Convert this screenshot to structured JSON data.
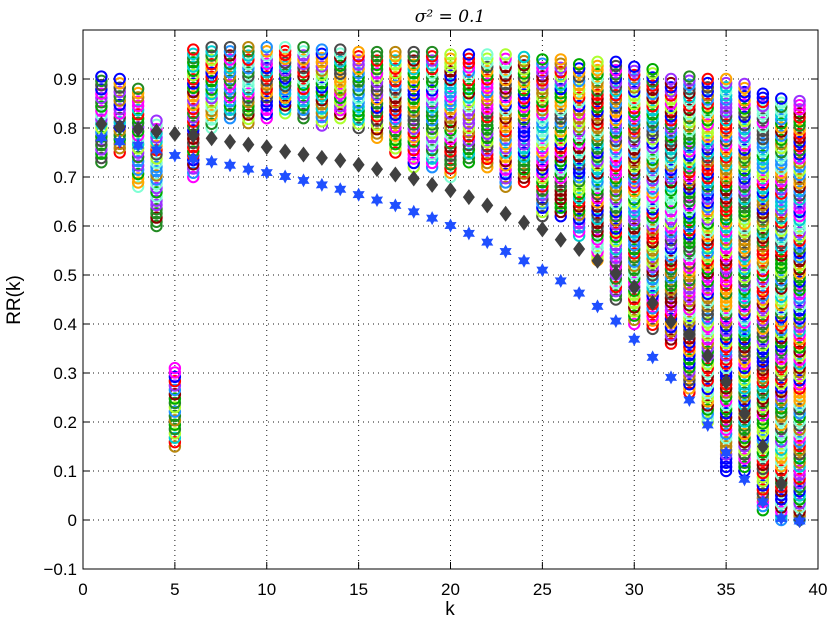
{
  "chart_data": {
    "type": "scatter",
    "title": "σ² = 0.1",
    "xlabel": "k",
    "ylabel": "RR(k)",
    "xlim": [
      0,
      40
    ],
    "ylim": [
      -0.1,
      1.0
    ],
    "xticks": [
      0,
      5,
      10,
      15,
      20,
      25,
      30,
      35,
      40
    ],
    "xtick_labels": [
      "0",
      "5",
      "10",
      "15",
      "20",
      "25",
      "30",
      "35",
      "40"
    ],
    "yticks": [
      -0.1,
      0,
      0.1,
      0.2,
      0.3,
      0.4,
      0.5,
      0.6,
      0.7,
      0.8,
      0.9
    ],
    "ytick_labels": [
      "−0.1",
      "0",
      "0.1",
      "0.2",
      "0.3",
      "0.4",
      "0.5",
      "0.6",
      "0.7",
      "0.8",
      "0.9"
    ],
    "grid": true,
    "marker_palette": [
      "#ff0000",
      "#00aa00",
      "#0000ff",
      "#9b30ff",
      "#ffa500",
      "#00ced1",
      "#228b22",
      "#4b4b4b",
      "#adff2f",
      "#ff00ff",
      "#7fffd4",
      "#8b0000",
      "#1e90ff",
      "#b8860b"
    ],
    "series": [
      {
        "name": "diamond",
        "marker": "diamond",
        "color": "#404040",
        "x": [
          1,
          2,
          3,
          4,
          5,
          6,
          7,
          8,
          9,
          10,
          11,
          12,
          13,
          14,
          15,
          16,
          17,
          18,
          19,
          20,
          21,
          22,
          23,
          24,
          25,
          26,
          27,
          28,
          29,
          30,
          31,
          32,
          33,
          34,
          35,
          36,
          37,
          38,
          39
        ],
        "y": [
          0.808,
          0.802,
          0.798,
          0.793,
          0.788,
          0.785,
          0.779,
          0.772,
          0.766,
          0.761,
          0.752,
          0.746,
          0.739,
          0.734,
          0.725,
          0.716,
          0.705,
          0.697,
          0.684,
          0.673,
          0.659,
          0.642,
          0.625,
          0.607,
          0.593,
          0.572,
          0.553,
          0.529,
          0.503,
          0.475,
          0.443,
          0.405,
          0.379,
          0.335,
          0.282,
          0.217,
          0.15,
          0.074,
          0.0
        ]
      },
      {
        "name": "star",
        "marker": "hexagram",
        "color": "#1f4fff",
        "x": [
          1,
          2,
          3,
          4,
          5,
          6,
          7,
          8,
          9,
          10,
          11,
          12,
          13,
          14,
          15,
          16,
          17,
          18,
          19,
          20,
          21,
          22,
          23,
          24,
          25,
          26,
          27,
          28,
          29,
          30,
          31,
          32,
          33,
          34,
          35,
          36,
          37,
          38,
          39
        ],
        "y": [
          0.78,
          0.772,
          0.765,
          0.755,
          0.744,
          0.737,
          0.731,
          0.724,
          0.716,
          0.709,
          0.701,
          0.693,
          0.684,
          0.675,
          0.664,
          0.653,
          0.642,
          0.629,
          0.616,
          0.601,
          0.585,
          0.567,
          0.548,
          0.529,
          0.51,
          0.488,
          0.463,
          0.436,
          0.406,
          0.369,
          0.332,
          0.291,
          0.245,
          0.194,
          0.137,
          0.083,
          0.037,
          0.003,
          -0.002
        ]
      },
      {
        "name": "circles",
        "marker": "circle",
        "ranges_by_k": [
          [
            1,
            0.73,
            0.905
          ],
          [
            2,
            0.75,
            0.9
          ],
          [
            3,
            0.68,
            0.88
          ],
          [
            4,
            0.6,
            0.815
          ],
          [
            5,
            0.15,
            0.31
          ],
          [
            6,
            0.7,
            0.96
          ],
          [
            7,
            0.8,
            0.965
          ],
          [
            8,
            0.82,
            0.965
          ],
          [
            9,
            0.81,
            0.965
          ],
          [
            10,
            0.82,
            0.965
          ],
          [
            11,
            0.83,
            0.965
          ],
          [
            12,
            0.82,
            0.965
          ],
          [
            13,
            0.805,
            0.96
          ],
          [
            14,
            0.82,
            0.96
          ],
          [
            15,
            0.8,
            0.955
          ],
          [
            16,
            0.78,
            0.955
          ],
          [
            17,
            0.75,
            0.955
          ],
          [
            18,
            0.72,
            0.955
          ],
          [
            19,
            0.72,
            0.955
          ],
          [
            20,
            0.7,
            0.95
          ],
          [
            21,
            0.73,
            0.95
          ],
          [
            22,
            0.72,
            0.95
          ],
          [
            23,
            0.68,
            0.95
          ],
          [
            24,
            0.69,
            0.945
          ],
          [
            25,
            0.62,
            0.94
          ],
          [
            26,
            0.62,
            0.94
          ],
          [
            27,
            0.58,
            0.93
          ],
          [
            28,
            0.53,
            0.935
          ],
          [
            29,
            0.45,
            0.935
          ],
          [
            30,
            0.4,
            0.925
          ],
          [
            31,
            0.39,
            0.92
          ],
          [
            32,
            0.36,
            0.9
          ],
          [
            33,
            0.26,
            0.905
          ],
          [
            34,
            0.2,
            0.9
          ],
          [
            35,
            0.1,
            0.9
          ],
          [
            36,
            0.1,
            0.89
          ],
          [
            37,
            0.02,
            0.87
          ],
          [
            38,
            0.0,
            0.86
          ],
          [
            39,
            0.0,
            0.855
          ]
        ]
      }
    ]
  }
}
